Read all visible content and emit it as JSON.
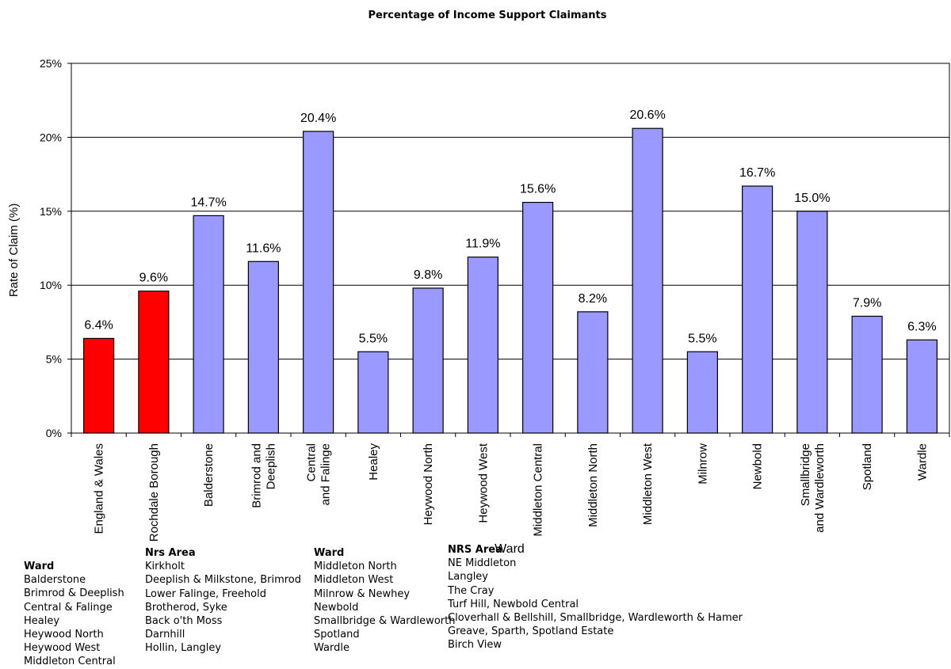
{
  "chart_data": {
    "type": "bar",
    "title": "Percentage of Income Support Claimants",
    "xlabel": "Ward",
    "ylabel": "Rate of Claim (%)",
    "ylim": [
      0,
      25
    ],
    "yticks": [
      "0%",
      "5%",
      "10%",
      "15%",
      "20%",
      "25%"
    ],
    "grid": true,
    "colors": {
      "comparison": "#ff0000",
      "ward": "#9999ff",
      "grid": "#000000"
    },
    "categories": [
      "England & Wales",
      "Rochdale Borough",
      "Balderstone",
      "Brimrod and Deeplish",
      "Central and Falinge",
      "Healey",
      "Heywood North",
      "Heywood West",
      "Middleton Central",
      "Middleton North",
      "Middleton West",
      "Milnrow",
      "Newbold",
      "Smallbridge and Wardleworth",
      "Spotland",
      "Wardle"
    ],
    "values": [
      6.4,
      9.6,
      14.7,
      11.6,
      20.4,
      5.5,
      9.8,
      11.9,
      15.6,
      8.2,
      20.6,
      5.5,
      16.7,
      15.0,
      7.9,
      6.3
    ],
    "value_labels": [
      "6.4%",
      "9.6%",
      "14.7%",
      "11.6%",
      "20.4%",
      "5.5%",
      "9.8%",
      "11.9%",
      "15.6%",
      "8.2%",
      "20.6%",
      "5.5%",
      "16.7%",
      "15.0%",
      "7.9%",
      "6.3%"
    ],
    "bar_groups": [
      "comparison",
      "comparison",
      "ward",
      "ward",
      "ward",
      "ward",
      "ward",
      "ward",
      "ward",
      "ward",
      "ward",
      "ward",
      "ward",
      "ward",
      "ward",
      "ward"
    ]
  },
  "lookup": {
    "col1_header": "Ward",
    "col1": [
      "Balderstone",
      "Brimrod & Deeplish",
      "Central & Falinge",
      "Healey",
      "Heywood North",
      "Heywood West",
      "Middleton Central"
    ],
    "col2_header": "Nrs Area",
    "col2": [
      "Kirkholt",
      "Deeplish & Milkstone, Brimrod",
      "Lower Falinge, Freehold",
      "Brotherod, Syke",
      "Back o'th Moss",
      "Darnhill",
      "Hollin, Langley"
    ],
    "col3_header": "Ward",
    "col3": [
      "Middleton North",
      "Middleton West",
      "Milnrow & Newhey",
      "Newbold",
      "Smallbridge & Wardleworth",
      "Spotland",
      "Wardle"
    ],
    "col4_header": "NRS Area",
    "col4": [
      "NE Middleton",
      "Langley",
      "The Cray",
      "Turf Hill, Newbold Central",
      "Cloverhall & Bellshill, Smallbridge, Wardleworth & Hamer",
      "Greave, Sparth,  Spotland Estate",
      "Birch View"
    ]
  }
}
